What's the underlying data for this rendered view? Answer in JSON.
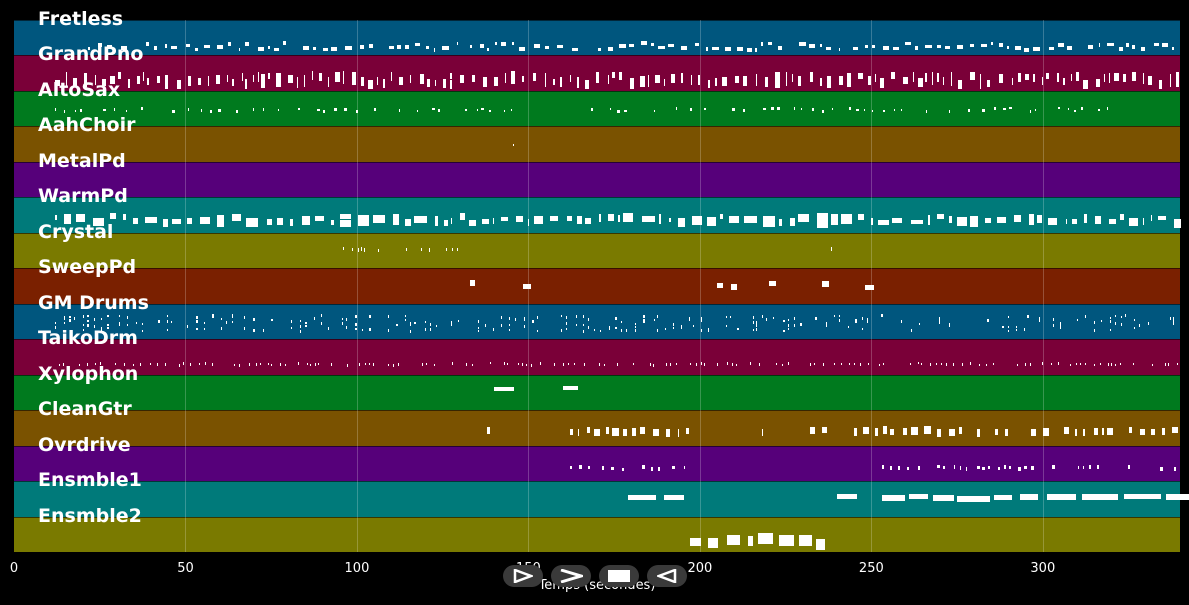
{
  "tracks": [
    {
      "name": "Fretless",
      "color": "#00567e"
    },
    {
      "name": "GrandPno",
      "color": "#7a0038"
    },
    {
      "name": "AltoSax",
      "color": "#007a1e"
    },
    {
      "name": "AahChoir",
      "color": "#7a5200"
    },
    {
      "name": "MetalPd",
      "color": "#56007a"
    },
    {
      "name": "WarmPd",
      "color": "#007a7a"
    },
    {
      "name": "Crystal",
      "color": "#7a7a00"
    },
    {
      "name": "SweepPd",
      "color": "#7a2000"
    },
    {
      "name": "GM Drums",
      "color": "#00567e"
    },
    {
      "name": "TaikoDrm",
      "color": "#7a0038"
    },
    {
      "name": "Xylophon",
      "color": "#007a1e"
    },
    {
      "name": "CleanGtr",
      "color": "#7a5200"
    },
    {
      "name": "Ovrdrive",
      "color": "#56007a"
    },
    {
      "name": "Ensmble1",
      "color": "#007a7a"
    },
    {
      "name": "Ensmble2",
      "color": "#7a7a00"
    }
  ],
  "axis": {
    "x_range": [
      0,
      340
    ],
    "ticks": [
      "0",
      "50",
      "100",
      "150",
      "200",
      "250",
      "300"
    ],
    "tick_values": [
      0,
      50,
      100,
      150,
      200,
      250,
      300
    ],
    "title": "Temps (secondes)"
  },
  "controls": {
    "play_icon": "play-icon",
    "forward_icon": "forward-icon",
    "stop_icon": "stop-icon",
    "back_icon": "back-icon"
  }
}
